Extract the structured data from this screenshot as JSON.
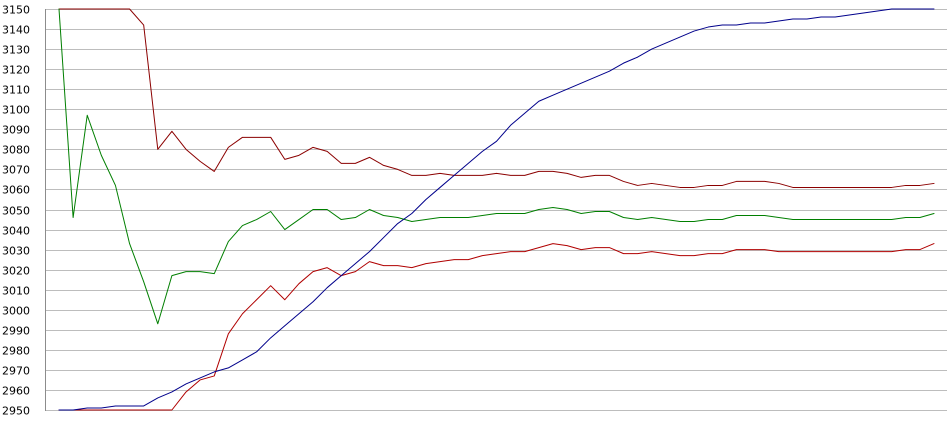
{
  "chart_data": {
    "type": "line",
    "title": "",
    "xlabel": "",
    "ylabel": "",
    "ylim": [
      2950,
      3150
    ],
    "y_ticks": [
      2950,
      2960,
      2970,
      2980,
      2990,
      3000,
      3010,
      3020,
      3030,
      3040,
      3050,
      3060,
      3070,
      3080,
      3090,
      3100,
      3110,
      3120,
      3130,
      3140,
      3150
    ],
    "grid": true,
    "legend": "none",
    "x": [
      1,
      2,
      3,
      4,
      5,
      6,
      7,
      8,
      9,
      10,
      11,
      12,
      13,
      14,
      15,
      16,
      17,
      18,
      19,
      20,
      21,
      22,
      23,
      24,
      25,
      26,
      27,
      28,
      29,
      30,
      31,
      32,
      33,
      34,
      35,
      36,
      37,
      38,
      39,
      40,
      41,
      42,
      43,
      44,
      45,
      46,
      47,
      48,
      49,
      50,
      51,
      52,
      53,
      54,
      55,
      56,
      57,
      58,
      59,
      60,
      61,
      62,
      63
    ],
    "series": [
      {
        "color": "#8b0000",
        "values": [
          3150,
          3150,
          3150,
          3150,
          3150,
          3150,
          3142,
          3080,
          3089,
          3080,
          3074,
          3069,
          3081,
          3086,
          3086,
          3086,
          3075,
          3077,
          3081,
          3079,
          3073,
          3073,
          3076,
          3072,
          3070,
          3067,
          3067,
          3068,
          3067,
          3067,
          3067,
          3068,
          3067,
          3067,
          3069,
          3069,
          3068,
          3066,
          3067,
          3067,
          3064,
          3062,
          3063,
          3062,
          3061,
          3061,
          3062,
          3062,
          3064,
          3064,
          3064,
          3063,
          3061,
          3061,
          3061,
          3061,
          3061,
          3061,
          3061,
          3061,
          3062,
          3062,
          3063
        ]
      },
      {
        "color": "#007f00",
        "values": [
          3150,
          3046,
          3097,
          3077,
          3062,
          3033,
          3014,
          2993,
          3017,
          3019,
          3019,
          3018,
          3034,
          3042,
          3045,
          3049,
          3040,
          3045,
          3050,
          3050,
          3045,
          3046,
          3050,
          3047,
          3046,
          3044,
          3045,
          3046,
          3046,
          3046,
          3047,
          3048,
          3048,
          3048,
          3050,
          3051,
          3050,
          3048,
          3049,
          3049,
          3046,
          3045,
          3046,
          3045,
          3044,
          3044,
          3045,
          3045,
          3047,
          3047,
          3047,
          3046,
          3045,
          3045,
          3045,
          3045,
          3045,
          3045,
          3045,
          3045,
          3046,
          3046,
          3048
        ]
      },
      {
        "color": "#b00000",
        "values": [
          2950,
          2950,
          2950,
          2950,
          2950,
          2950,
          2950,
          2950,
          2950,
          2959,
          2965,
          2967,
          2988,
          2998,
          3005,
          3012,
          3005,
          3013,
          3019,
          3021,
          3017,
          3019,
          3024,
          3022,
          3022,
          3021,
          3023,
          3024,
          3025,
          3025,
          3027,
          3028,
          3029,
          3029,
          3031,
          3033,
          3032,
          3030,
          3031,
          3031,
          3028,
          3028,
          3029,
          3028,
          3027,
          3027,
          3028,
          3028,
          3030,
          3030,
          3030,
          3029,
          3029,
          3029,
          3029,
          3029,
          3029,
          3029,
          3029,
          3029,
          3030,
          3030,
          3033
        ]
      },
      {
        "color": "#00008b",
        "values": [
          2950,
          2950,
          2951,
          2951,
          2952,
          2952,
          2952,
          2956,
          2959,
          2963,
          2966,
          2969,
          2971,
          2975,
          2979,
          2986,
          2992,
          2998,
          3004,
          3011,
          3017,
          3023,
          3029,
          3036,
          3043,
          3048,
          3055,
          3061,
          3067,
          3073,
          3079,
          3084,
          3092,
          3098,
          3104,
          3107,
          3110,
          3113,
          3116,
          3119,
          3123,
          3126,
          3130,
          3133,
          3136,
          3139,
          3141,
          3142,
          3142,
          3143,
          3143,
          3144,
          3145,
          3145,
          3146,
          3146,
          3147,
          3148,
          3149,
          3150,
          3150,
          3150,
          3150
        ]
      }
    ]
  }
}
